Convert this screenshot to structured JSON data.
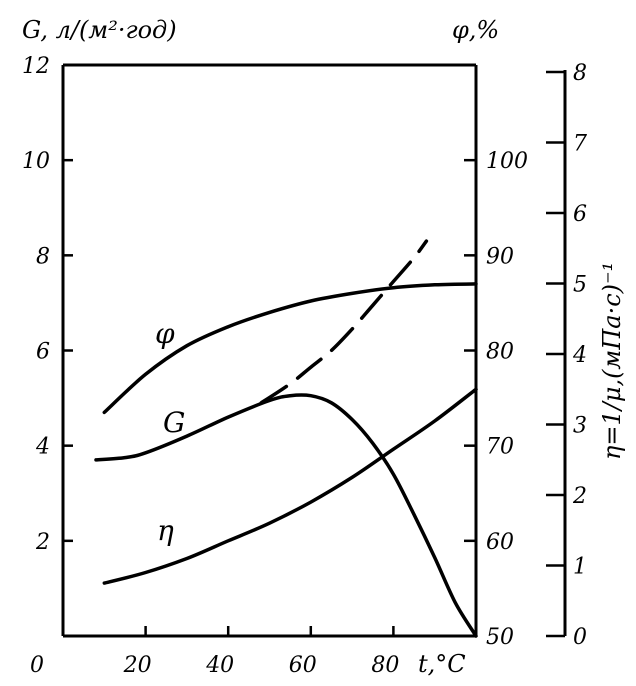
{
  "chart_data": {
    "type": "line",
    "x_axis": {
      "label": "t,°C",
      "range": [
        0,
        100
      ],
      "ticks": [
        0,
        20,
        40,
        60,
        80
      ],
      "tick_labels": [
        "0",
        "20",
        "40",
        "60",
        "80"
      ]
    },
    "y_left": {
      "label": "G, л/(м²·год)",
      "range": [
        0,
        12
      ],
      "ticks": [
        2,
        4,
        6,
        8,
        10,
        12
      ],
      "tick_labels": [
        "2",
        "4",
        "6",
        "8",
        "10",
        "12"
      ]
    },
    "y_mid": {
      "label": "φ,%",
      "range": [
        50,
        110
      ],
      "ticks": [
        50,
        60,
        70,
        80,
        90,
        100
      ],
      "tick_labels": [
        "50",
        "60",
        "70",
        "80",
        "90",
        "100"
      ]
    },
    "y_right": {
      "label": "η=1/μ,(мПа·с)⁻¹",
      "range": [
        0,
        8
      ],
      "ticks": [
        0,
        1,
        2,
        3,
        4,
        5,
        6,
        7,
        8
      ],
      "tick_labels": [
        "0",
        "1",
        "2",
        "3",
        "4",
        "5",
        "6",
        "7",
        "8"
      ]
    },
    "series": [
      {
        "name": "φ",
        "axis": "y_mid",
        "style": "solid",
        "points": [
          [
            10,
            73.5
          ],
          [
            20,
            77.5
          ],
          [
            30,
            80.5
          ],
          [
            40,
            82.5
          ],
          [
            50,
            84
          ],
          [
            60,
            85.2
          ],
          [
            70,
            86
          ],
          [
            80,
            86.6
          ],
          [
            90,
            86.9
          ],
          [
            100,
            87
          ]
        ]
      },
      {
        "name": "G",
        "axis": "y_left",
        "style": "solid",
        "points": [
          [
            8,
            3.7
          ],
          [
            15,
            3.75
          ],
          [
            20,
            3.85
          ],
          [
            30,
            4.2
          ],
          [
            40,
            4.6
          ],
          [
            50,
            4.95
          ],
          [
            55,
            5.05
          ],
          [
            60,
            5.05
          ],
          [
            65,
            4.9
          ],
          [
            70,
            4.55
          ],
          [
            75,
            4.05
          ],
          [
            80,
            3.4
          ],
          [
            85,
            2.55
          ],
          [
            90,
            1.65
          ],
          [
            95,
            0.7
          ],
          [
            100,
            0
          ]
        ]
      },
      {
        "name": "G",
        "axis": "y_left",
        "style": "dashed",
        "points": [
          [
            48,
            4.9
          ],
          [
            55,
            5.3
          ],
          [
            60,
            5.65
          ],
          [
            65,
            6.0
          ],
          [
            70,
            6.45
          ],
          [
            75,
            6.95
          ],
          [
            80,
            7.45
          ],
          [
            85,
            7.95
          ],
          [
            88,
            8.3
          ]
        ]
      },
      {
        "name": "η",
        "axis": "y_right",
        "style": "solid",
        "points": [
          [
            10,
            0.75
          ],
          [
            20,
            0.9
          ],
          [
            30,
            1.1
          ],
          [
            40,
            1.35
          ],
          [
            50,
            1.6
          ],
          [
            60,
            1.9
          ],
          [
            70,
            2.25
          ],
          [
            80,
            2.65
          ],
          [
            90,
            3.05
          ],
          [
            100,
            3.5
          ]
        ]
      }
    ]
  }
}
